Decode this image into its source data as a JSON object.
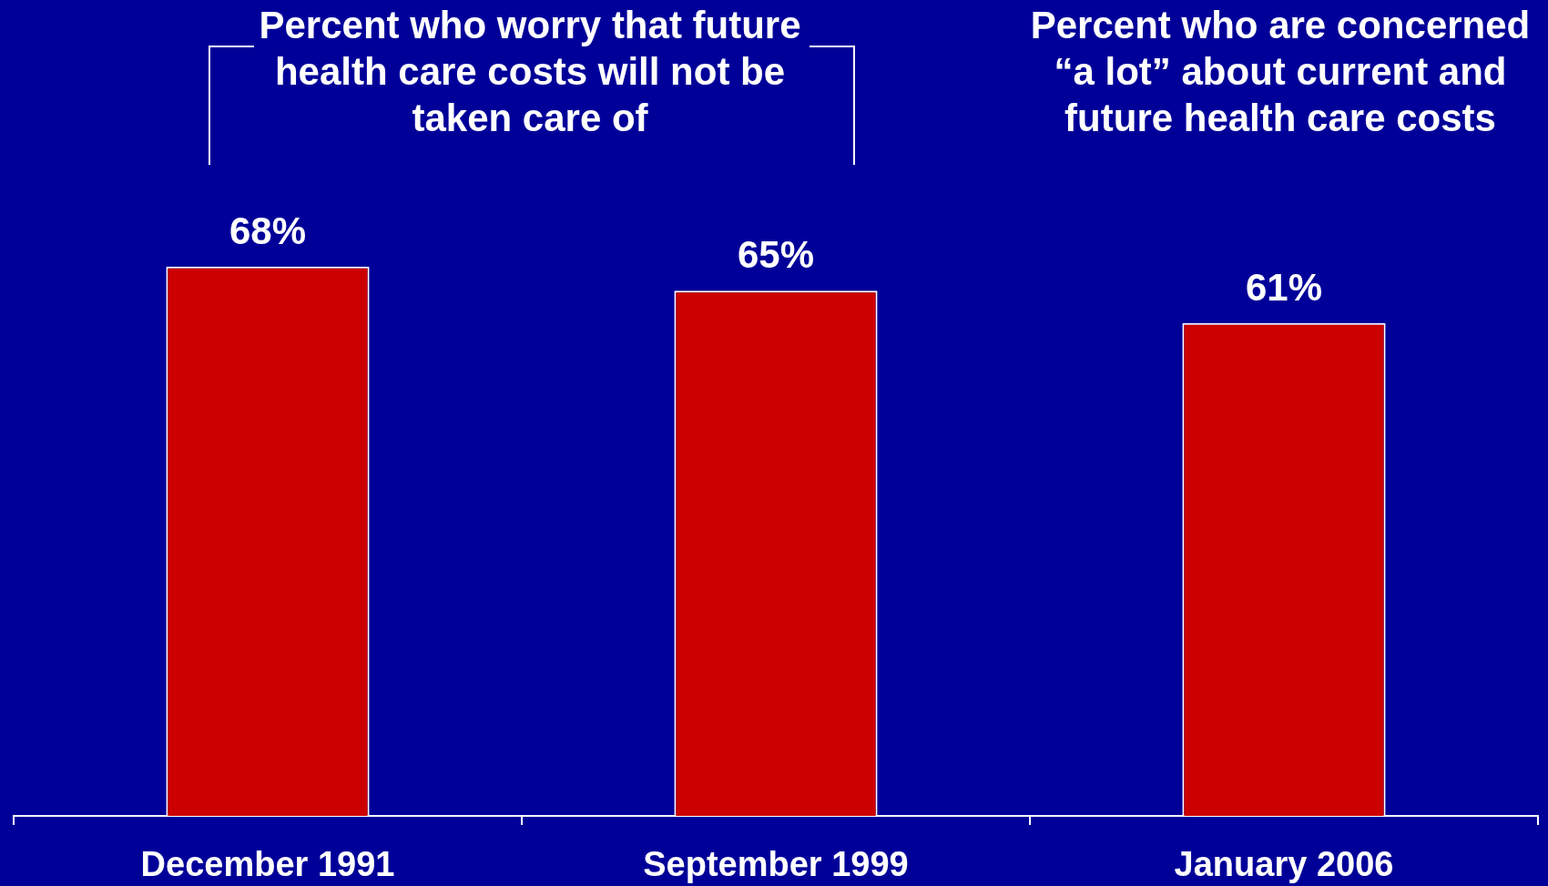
{
  "chart_data": {
    "type": "bar",
    "categories": [
      "December 1991",
      "September 1999",
      "January 2006"
    ],
    "values": [
      68,
      65,
      61
    ],
    "color": "#cc0000",
    "value_labels": [
      "68%",
      "65%",
      "61%"
    ],
    "annotations": [
      "Percent who worry that future health care costs will not be taken care of",
      "Percent who are concerned “a lot” about current and future health care costs"
    ],
    "tick_labels": "x"
  }
}
